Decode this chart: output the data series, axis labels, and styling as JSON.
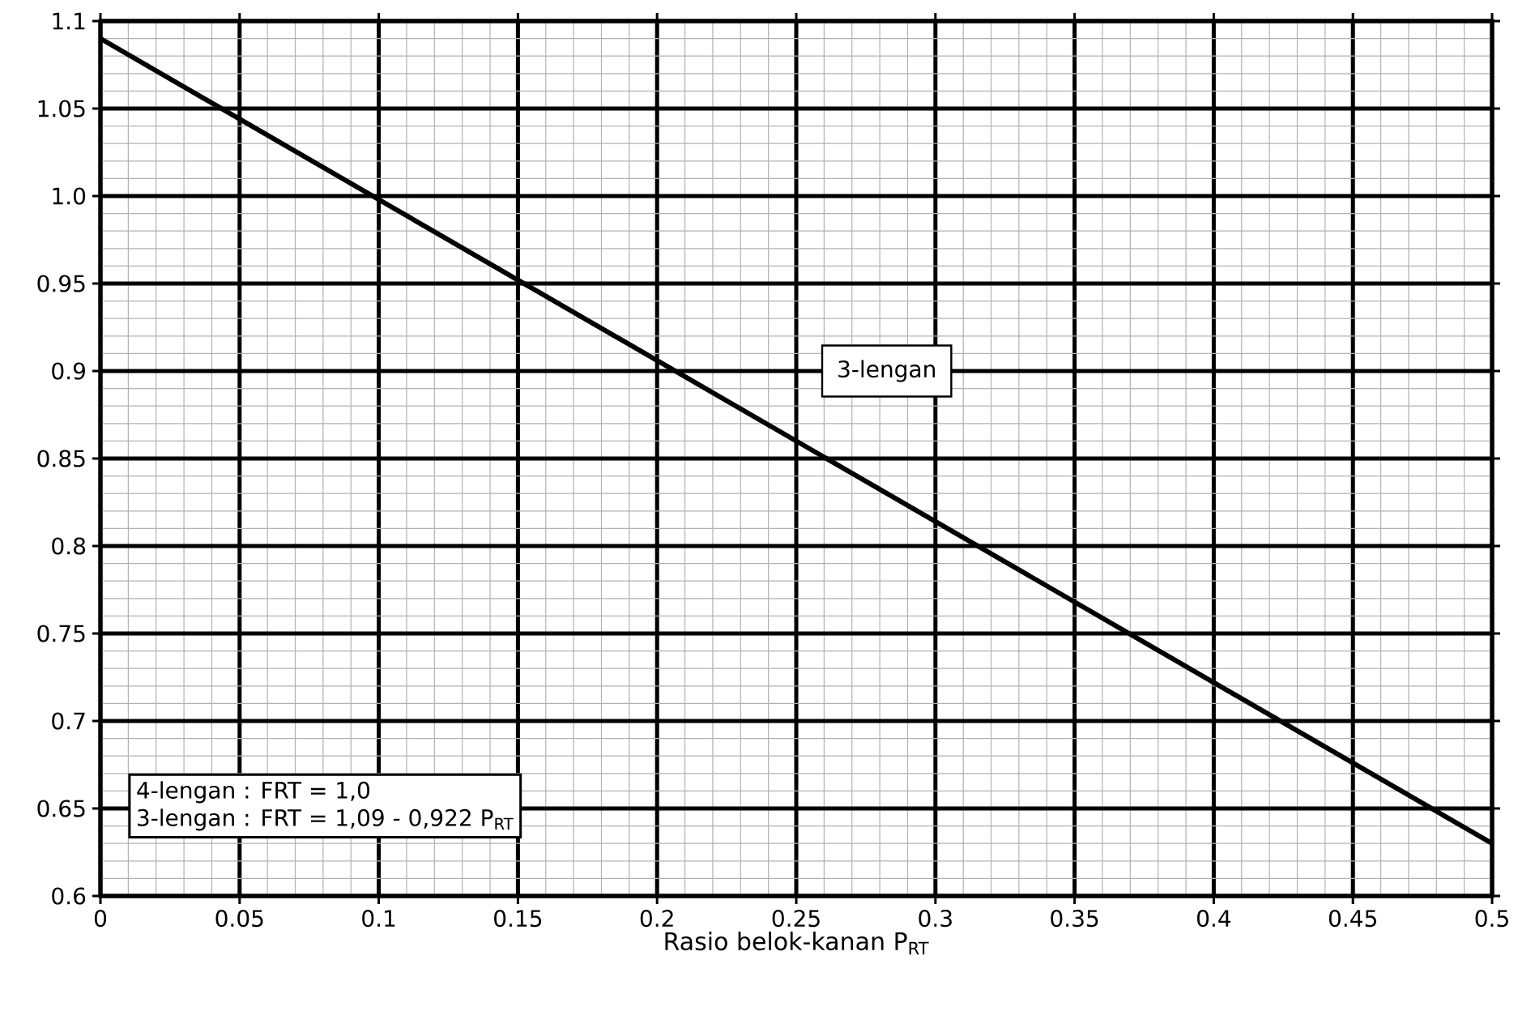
{
  "chart_data": {
    "type": "line",
    "xlabel": "Rasio belok-kanan P$_{RT}$",
    "x": [
      0,
      0.5
    ],
    "series": [
      {
        "name": "3-lengan",
        "color": "#000000",
        "values": [
          1.09,
          0.63
        ]
      }
    ],
    "xlim": [
      0,
      0.5
    ],
    "xticks": [
      0,
      0.05,
      0.1,
      0.15,
      0.2,
      0.25,
      0.3,
      0.35,
      0.4,
      0.45,
      0.5
    ],
    "ylim": [
      0.6,
      1.1
    ],
    "yticks": [
      0.6,
      0.65,
      0.7,
      0.75,
      0.8,
      0.85,
      0.9,
      0.95,
      {
        "value": 1.0,
        "label": "1.0"
      },
      1.05,
      1.1
    ],
    "grid": true,
    "legend": false,
    "marker": "none",
    "line_style": "solid",
    "annotations": [
      "4-lengan : FRT = 1,0",
      "3-lengan : FRT = 1,09 - 0,922 P$_{RT}$"
    ]
  }
}
